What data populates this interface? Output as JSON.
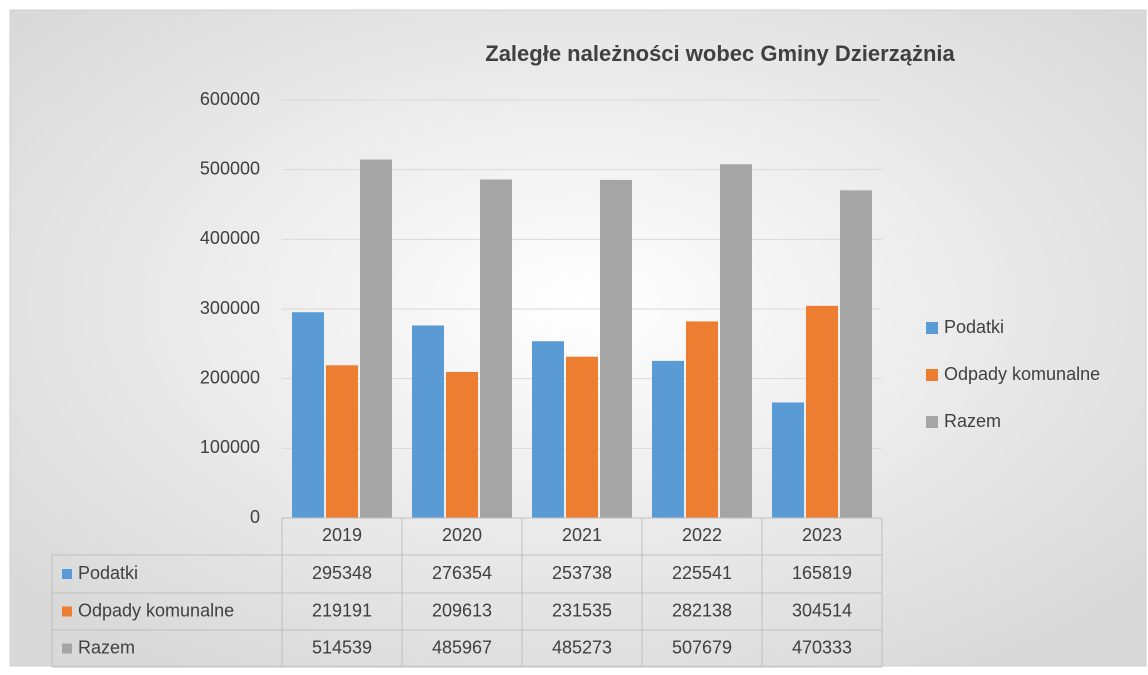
{
  "chart_data": {
    "type": "bar",
    "title": "Zaległe należności wobec  Gminy Dzierzążnia",
    "categories": [
      "2019",
      "2020",
      "2021",
      "2022",
      "2023"
    ],
    "series": [
      {
        "name": "Podatki",
        "color": "#5b9bd5",
        "values": [
          295348,
          276354,
          253738,
          225541,
          165819
        ]
      },
      {
        "name": "Odpady komunalne",
        "color": "#ed7d31",
        "values": [
          219191,
          209613,
          231535,
          282138,
          304514
        ]
      },
      {
        "name": "Razem",
        "color": "#a5a5a5",
        "values": [
          514539,
          485967,
          485273,
          507679,
          470333
        ]
      }
    ],
    "ylim": [
      0,
      600000
    ],
    "yticks": [
      0,
      100000,
      200000,
      300000,
      400000,
      500000,
      600000
    ],
    "grid": true,
    "legend": "right",
    "data_table": true
  }
}
